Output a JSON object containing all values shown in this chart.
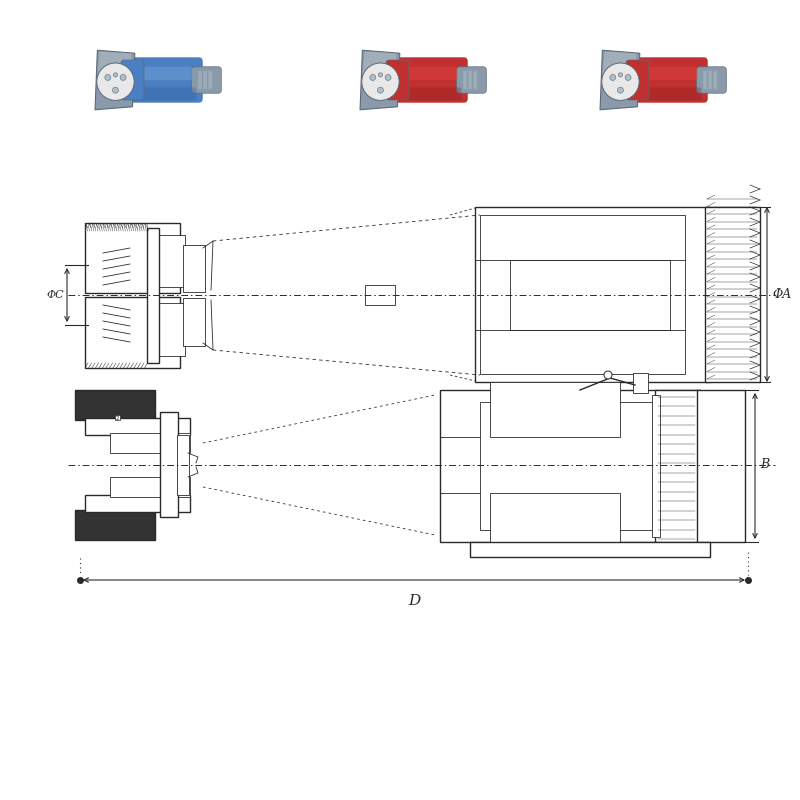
{
  "bg_color": "#ffffff",
  "line_color": "#2a2a2a",
  "dim_color": "#2a2a2a",
  "blue_main": "#4a7fc1",
  "blue_light": "#6fa0d8",
  "blue_dark": "#2a5a9c",
  "red_main": "#c03030",
  "red_dark": "#8a1a1a",
  "gray_main": "#8a9aaa",
  "gray_light": "#b0bec8",
  "gray_dark": "#5a6a78",
  "white_inner": "#f8f8f8",
  "dim_A_label": "ΦA",
  "dim_B_label": "B",
  "dim_C_label": "ΦC",
  "dim_D_label": "D",
  "fig_width": 8.0,
  "fig_height": 8.0
}
